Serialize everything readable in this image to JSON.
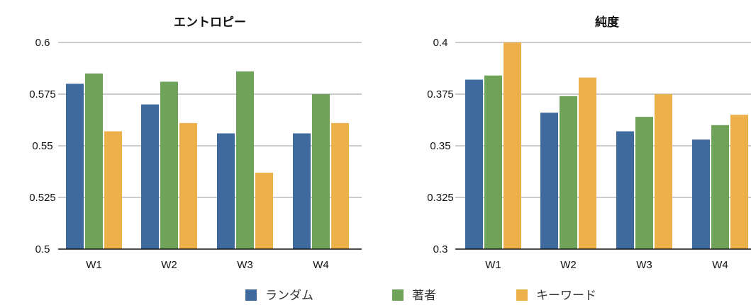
{
  "colors": {
    "random": "#3e6a9e",
    "author": "#6fa359",
    "keyword": "#ecb14b"
  },
  "legend": [
    {
      "label": "ランダム",
      "color": "#3e6a9e"
    },
    {
      "label": "著者",
      "color": "#6fa359"
    },
    {
      "label": "キーワード",
      "color": "#ecb14b"
    }
  ],
  "chart_data": [
    {
      "type": "bar",
      "title": "エントロピー",
      "categories": [
        "W1",
        "W2",
        "W3",
        "W4"
      ],
      "ylim": [
        0.5,
        0.6
      ],
      "yticks": [
        "0.5",
        "0.525",
        "0.55",
        "0.575",
        "0.6"
      ],
      "grid": true,
      "series": [
        {
          "name": "ランダム",
          "values": [
            0.58,
            0.57,
            0.556,
            0.556
          ]
        },
        {
          "name": "著者",
          "values": [
            0.585,
            0.581,
            0.586,
            0.575
          ]
        },
        {
          "name": "キーワード",
          "values": [
            0.557,
            0.561,
            0.537,
            0.561
          ]
        }
      ]
    },
    {
      "type": "bar",
      "title": "純度",
      "categories": [
        "W1",
        "W2",
        "W3",
        "W4"
      ],
      "ylim": [
        0.3,
        0.4
      ],
      "yticks": [
        "0.3",
        "0.325",
        "0.35",
        "0.375",
        "0.4"
      ],
      "grid": true,
      "series": [
        {
          "name": "ランダム",
          "values": [
            0.382,
            0.366,
            0.357,
            0.353
          ]
        },
        {
          "name": "著者",
          "values": [
            0.384,
            0.374,
            0.364,
            0.36
          ]
        },
        {
          "name": "キーワード",
          "values": [
            0.4,
            0.383,
            0.375,
            0.365
          ]
        }
      ]
    }
  ]
}
